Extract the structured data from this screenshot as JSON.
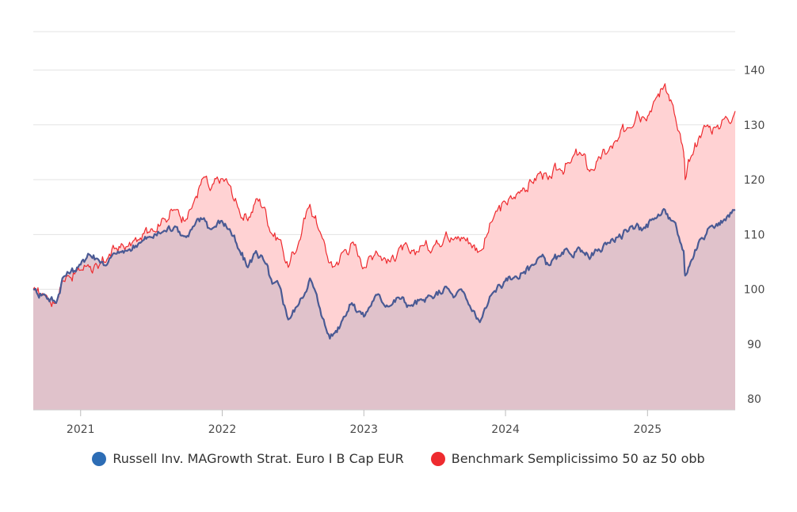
{
  "chart_data": {
    "type": "area",
    "x_range": [
      "2020-09-01",
      "2025-08-15"
    ],
    "ylim": [
      78,
      147
    ],
    "y_ticks": [
      80,
      90,
      100,
      110,
      120,
      130,
      140
    ],
    "x_ticks": [
      {
        "date": "2021-01-01",
        "label": "2021"
      },
      {
        "date": "2022-01-01",
        "label": "2022"
      },
      {
        "date": "2023-01-01",
        "label": "2023"
      },
      {
        "date": "2024-01-01",
        "label": "2024"
      },
      {
        "date": "2025-01-01",
        "label": "2025"
      }
    ],
    "grid": true,
    "legend_position": "bottom",
    "series": [
      {
        "name": "Benchmark Semplicissimo 50 az 50 obb",
        "color": "#ee2b2f",
        "fill": "#ffd2d3",
        "points": [
          [
            "2020-09-01",
            100
          ],
          [
            "2020-10-01",
            99
          ],
          [
            "2020-10-30",
            97.5
          ],
          [
            "2020-11-15",
            101.5
          ],
          [
            "2020-12-01",
            102.5
          ],
          [
            "2021-01-01",
            103.5
          ],
          [
            "2021-01-20",
            104.5
          ],
          [
            "2021-02-15",
            103.8
          ],
          [
            "2021-03-10",
            105.5
          ],
          [
            "2021-04-01",
            107.5
          ],
          [
            "2021-05-01",
            107.8
          ],
          [
            "2021-06-01",
            109
          ],
          [
            "2021-07-01",
            111
          ],
          [
            "2021-08-01",
            113
          ],
          [
            "2021-09-01",
            114.5
          ],
          [
            "2021-09-30",
            112.8
          ],
          [
            "2021-10-20",
            116
          ],
          [
            "2021-11-15",
            120.5
          ],
          [
            "2021-12-01",
            118
          ],
          [
            "2021-12-31",
            120.2
          ],
          [
            "2022-01-20",
            119
          ],
          [
            "2022-02-10",
            115
          ],
          [
            "2022-03-08",
            112.5
          ],
          [
            "2022-03-29",
            116.5
          ],
          [
            "2022-04-20",
            115
          ],
          [
            "2022-05-10",
            110
          ],
          [
            "2022-06-01",
            109
          ],
          [
            "2022-06-20",
            104
          ],
          [
            "2022-07-15",
            108
          ],
          [
            "2022-08-15",
            115.5
          ],
          [
            "2022-09-10",
            110.5
          ],
          [
            "2022-09-29",
            106
          ],
          [
            "2022-10-12",
            104
          ],
          [
            "2022-11-10",
            107
          ],
          [
            "2022-12-01",
            108.5
          ],
          [
            "2022-12-20",
            106
          ],
          [
            "2023-01-01",
            104
          ],
          [
            "2023-02-01",
            107
          ],
          [
            "2023-03-10",
            105
          ],
          [
            "2023-04-01",
            107.5
          ],
          [
            "2023-05-01",
            106.5
          ],
          [
            "2023-06-01",
            108
          ],
          [
            "2023-07-01",
            108
          ],
          [
            "2023-08-01",
            110.5
          ],
          [
            "2023-08-20",
            109
          ],
          [
            "2023-09-15",
            109.5
          ],
          [
            "2023-10-01",
            108.5
          ],
          [
            "2023-10-27",
            107
          ],
          [
            "2023-11-15",
            110
          ],
          [
            "2023-12-01",
            113
          ],
          [
            "2023-12-31",
            116
          ],
          [
            "2024-01-20",
            116.5
          ],
          [
            "2024-02-15",
            118.5
          ],
          [
            "2024-03-10",
            119.5
          ],
          [
            "2024-03-31",
            121.5
          ],
          [
            "2024-04-20",
            120
          ],
          [
            "2024-05-20",
            122
          ],
          [
            "2024-06-15",
            123
          ],
          [
            "2024-07-10",
            125
          ],
          [
            "2024-08-05",
            121.5
          ],
          [
            "2024-08-25",
            123.5
          ],
          [
            "2024-09-20",
            125
          ],
          [
            "2024-10-15",
            127
          ],
          [
            "2024-11-10",
            129.5
          ],
          [
            "2024-12-05",
            132.5
          ],
          [
            "2024-12-20",
            131.5
          ],
          [
            "2025-01-20",
            134.5
          ],
          [
            "2025-02-15",
            137.5
          ],
          [
            "2025-03-05",
            134
          ],
          [
            "2025-03-20",
            129
          ],
          [
            "2025-04-04",
            125
          ],
          [
            "2025-04-08",
            120
          ],
          [
            "2025-04-22",
            124
          ],
          [
            "2025-05-15",
            128
          ],
          [
            "2025-06-05",
            130
          ],
          [
            "2025-06-25",
            129.5
          ],
          [
            "2025-07-15",
            131
          ],
          [
            "2025-08-15",
            132.5
          ]
        ]
      },
      {
        "name": "Russell Inv. MAGrowth Strat. Euro I B Cap EUR",
        "color": "#2d6db5",
        "line_color": "#4a5a94",
        "fill": "#dbbfc9",
        "points": [
          [
            "2020-09-01",
            100
          ],
          [
            "2020-10-01",
            99
          ],
          [
            "2020-10-30",
            97.5
          ],
          [
            "2020-11-15",
            102
          ],
          [
            "2020-12-01",
            103
          ],
          [
            "2021-01-01",
            104.5
          ],
          [
            "2021-01-20",
            106.5
          ],
          [
            "2021-02-15",
            105.5
          ],
          [
            "2021-03-10",
            104.5
          ],
          [
            "2021-04-01",
            106.5
          ],
          [
            "2021-05-01",
            107
          ],
          [
            "2021-06-01",
            108.5
          ],
          [
            "2021-07-01",
            109.5
          ],
          [
            "2021-08-01",
            110.5
          ],
          [
            "2021-09-01",
            111.5
          ],
          [
            "2021-09-30",
            109.5
          ],
          [
            "2021-10-20",
            111.5
          ],
          [
            "2021-11-15",
            113
          ],
          [
            "2021-12-01",
            111
          ],
          [
            "2021-12-31",
            112.5
          ],
          [
            "2022-01-20",
            111
          ],
          [
            "2022-02-10",
            107.5
          ],
          [
            "2022-03-08",
            104
          ],
          [
            "2022-03-29",
            107
          ],
          [
            "2022-04-20",
            105
          ],
          [
            "2022-05-10",
            101
          ],
          [
            "2022-06-01",
            100
          ],
          [
            "2022-06-20",
            94.5
          ],
          [
            "2022-07-15",
            97
          ],
          [
            "2022-08-15",
            102
          ],
          [
            "2022-09-10",
            96.5
          ],
          [
            "2022-09-29",
            92
          ],
          [
            "2022-10-12",
            91.5
          ],
          [
            "2022-11-10",
            95
          ],
          [
            "2022-12-01",
            97.5
          ],
          [
            "2022-12-20",
            96
          ],
          [
            "2023-01-01",
            95
          ],
          [
            "2023-02-01",
            99
          ],
          [
            "2023-03-10",
            97
          ],
          [
            "2023-04-01",
            98.5
          ],
          [
            "2023-05-01",
            97
          ],
          [
            "2023-06-01",
            98
          ],
          [
            "2023-07-01",
            98.5
          ],
          [
            "2023-08-01",
            100.5
          ],
          [
            "2023-08-20",
            98.5
          ],
          [
            "2023-09-15",
            99.5
          ],
          [
            "2023-10-01",
            97
          ],
          [
            "2023-10-27",
            94
          ],
          [
            "2023-11-15",
            97
          ],
          [
            "2023-12-01",
            99.5
          ],
          [
            "2023-12-31",
            101.5
          ],
          [
            "2024-01-20",
            102
          ],
          [
            "2024-02-15",
            103
          ],
          [
            "2024-03-10",
            104.5
          ],
          [
            "2024-03-31",
            106
          ],
          [
            "2024-04-20",
            104.5
          ],
          [
            "2024-05-20",
            106
          ],
          [
            "2024-06-15",
            106.5
          ],
          [
            "2024-07-10",
            107.5
          ],
          [
            "2024-08-05",
            105.5
          ],
          [
            "2024-08-25",
            107
          ],
          [
            "2024-09-20",
            108.5
          ],
          [
            "2024-10-15",
            109.5
          ],
          [
            "2024-11-10",
            110.5
          ],
          [
            "2024-12-05",
            112
          ],
          [
            "2024-12-20",
            111
          ],
          [
            "2025-01-20",
            113
          ],
          [
            "2025-02-15",
            114.5
          ],
          [
            "2025-03-05",
            112.5
          ],
          [
            "2025-03-20",
            110
          ],
          [
            "2025-04-04",
            107
          ],
          [
            "2025-04-08",
            102.5
          ],
          [
            "2025-04-22",
            105
          ],
          [
            "2025-05-15",
            109
          ],
          [
            "2025-06-05",
            111
          ],
          [
            "2025-06-25",
            111.5
          ],
          [
            "2025-07-15",
            112.5
          ],
          [
            "2025-08-15",
            114.5
          ]
        ]
      }
    ]
  }
}
